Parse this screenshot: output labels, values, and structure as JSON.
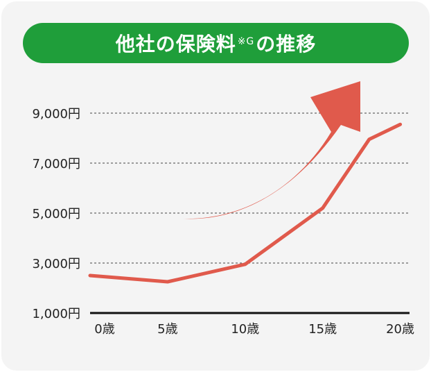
{
  "title": {
    "main": "他社の保険料",
    "sup": "※G",
    "suffix": "の推移"
  },
  "colors": {
    "title_bg": "#1f9e3a",
    "line": "#e05a4c",
    "arrow": "#e05a4c",
    "background": "#f4f4f4",
    "grid": "#666666",
    "axis": "#111111"
  },
  "chart_data": {
    "type": "line",
    "x": [
      0,
      5,
      10,
      15,
      18,
      20
    ],
    "xticks": [
      0,
      5,
      10,
      15,
      20
    ],
    "xtick_labels": [
      "0歳",
      "5歳",
      "10歳",
      "15歳",
      "20歳"
    ],
    "yticks": [
      1000,
      3000,
      5000,
      7000,
      9000
    ],
    "ytick_labels": [
      "1,000円",
      "3,000円",
      "5,000円",
      "7,000円",
      "9,000円"
    ],
    "xlim": [
      0,
      20.6
    ],
    "ylim": [
      1000,
      9000
    ],
    "grid": true,
    "series": [
      {
        "values": [
          2500,
          2250,
          2950,
          5200,
          7950,
          8550
        ]
      }
    ],
    "annotation": "upward-trend-arrow"
  }
}
